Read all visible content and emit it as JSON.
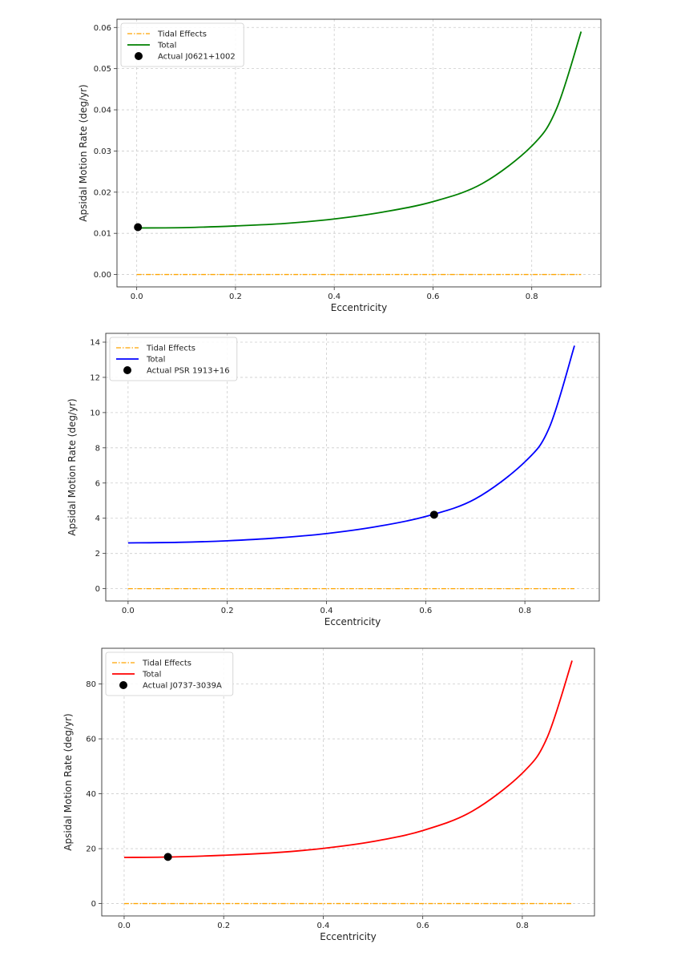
{
  "chart_data": [
    {
      "type": "line",
      "xlabel": "Eccentricity",
      "ylabel": "Apsidal Motion Rate (deg/yr)",
      "xlim": [
        -0.04,
        0.94
      ],
      "ylim": [
        -0.003,
        0.062
      ],
      "xticks": [
        "0.0",
        "0.2",
        "0.4",
        "0.6",
        "0.8"
      ],
      "yticks": [
        "0.00",
        "0.01",
        "0.02",
        "0.03",
        "0.04",
        "0.05",
        "0.06"
      ],
      "grid": true,
      "legend": "top-left",
      "series": [
        {
          "name": "Tidal Effects",
          "color": "#ffa500",
          "style": "dashdot",
          "x": [
            0.0,
            0.9
          ],
          "y": [
            0,
            0
          ]
        },
        {
          "name": "Total",
          "color": "#008000",
          "style": "solid",
          "x": [
            0.0,
            0.1,
            0.2,
            0.3,
            0.4,
            0.5,
            0.6,
            0.7,
            0.8,
            0.85,
            0.9
          ],
          "y": [
            0.0113,
            0.0114,
            0.0118,
            0.0124,
            0.0135,
            0.0152,
            0.0177,
            0.0221,
            0.0312,
            0.0402,
            0.059
          ]
        },
        {
          "name": "Actual J0621+1002",
          "color": "#000000",
          "style": "marker",
          "x": [
            0.0025
          ],
          "y": [
            0.0115
          ]
        }
      ]
    },
    {
      "type": "line",
      "xlabel": "Eccentricity",
      "ylabel": "Apsidal Motion Rate (deg/yr)",
      "xlim": [
        -0.045,
        0.95
      ],
      "ylim": [
        -0.7,
        14.5
      ],
      "xticks": [
        "0.0",
        "0.2",
        "0.4",
        "0.6",
        "0.8"
      ],
      "yticks": [
        "0",
        "2",
        "4",
        "6",
        "8",
        "10",
        "12",
        "14"
      ],
      "grid": true,
      "legend": "top-left",
      "series": [
        {
          "name": "Tidal Effects",
          "color": "#ffa500",
          "style": "dashdot",
          "x": [
            0.0,
            0.9
          ],
          "y": [
            0,
            0
          ]
        },
        {
          "name": "Total",
          "color": "#0000ff",
          "style": "solid",
          "x": [
            0.0,
            0.1,
            0.2,
            0.3,
            0.4,
            0.5,
            0.6,
            0.7,
            0.8,
            0.85,
            0.9
          ],
          "y": [
            2.6,
            2.63,
            2.72,
            2.88,
            3.13,
            3.52,
            4.1,
            5.1,
            7.2,
            9.2,
            13.8
          ]
        },
        {
          "name": "Actual PSR 1913+16",
          "color": "#000000",
          "style": "marker",
          "x": [
            0.617
          ],
          "y": [
            4.2
          ]
        }
      ]
    },
    {
      "type": "line",
      "xlabel": "Eccentricity",
      "ylabel": "Apsidal Motion Rate (deg/yr)",
      "xlim": [
        -0.045,
        0.945
      ],
      "ylim": [
        -4.5,
        93
      ],
      "xticks": [
        "0.0",
        "0.2",
        "0.4",
        "0.6",
        "0.8"
      ],
      "yticks": [
        "0",
        "20",
        "40",
        "60",
        "80"
      ],
      "grid": true,
      "legend": "top-left",
      "series": [
        {
          "name": "Tidal Effects",
          "color": "#ffa500",
          "style": "dashdot",
          "x": [
            0.0,
            0.9
          ],
          "y": [
            0,
            0
          ]
        },
        {
          "name": "Total",
          "color": "#ff0000",
          "style": "solid",
          "x": [
            0.0,
            0.1,
            0.2,
            0.3,
            0.4,
            0.5,
            0.6,
            0.7,
            0.8,
            0.85,
            0.9
          ],
          "y": [
            16.8,
            17.0,
            17.6,
            18.5,
            20.1,
            22.6,
            26.6,
            33.7,
            47.5,
            60.5,
            88.5
          ]
        },
        {
          "name": "Actual J0737-3039A",
          "color": "#000000",
          "style": "marker",
          "x": [
            0.088
          ],
          "y": [
            17.0
          ]
        }
      ]
    }
  ]
}
